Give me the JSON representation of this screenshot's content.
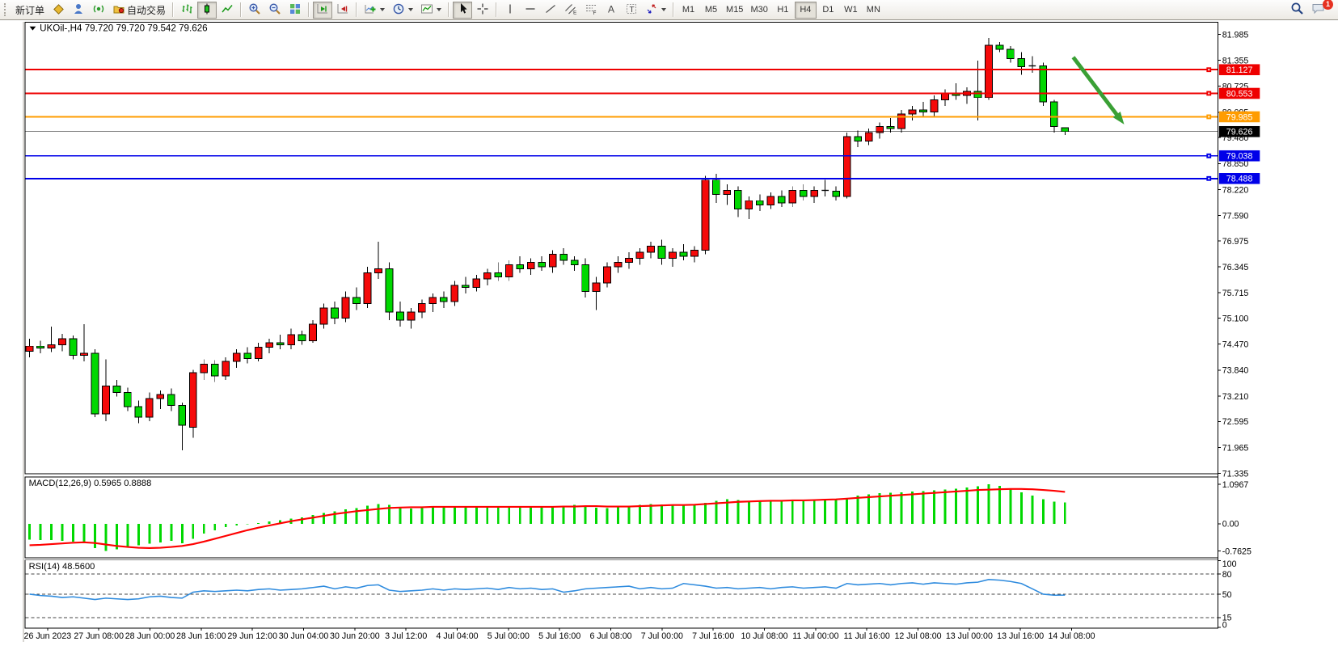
{
  "toolbar": {
    "new_order_label": "新订单",
    "auto_trading_label": "自动交易",
    "timeframes": [
      "M1",
      "M5",
      "M15",
      "M30",
      "H1",
      "H4",
      "D1",
      "W1",
      "MN"
    ],
    "active_timeframe": "H4",
    "notification_badge": "1"
  },
  "chart": {
    "symbol_title": "UKOil-,H4",
    "ohlc_text": "79.720 79.720 79.542 79.626",
    "macd_label": "MACD(12,26,9) 0.5965 0.8888",
    "rsi_label": "RSI(14) 48.5600"
  },
  "chart_data": [
    {
      "type": "candlestick",
      "symbol": "UKOil-",
      "timeframe": "H4",
      "open": 79.72,
      "high": 79.72,
      "low": 79.542,
      "close": 79.626,
      "bull_color": "#F50A0A",
      "bear_color": "#00D800",
      "wick_color": "#000000",
      "ylim": [
        71.335,
        81.985
      ],
      "price_ticks": [
        81.985,
        81.355,
        80.725,
        80.095,
        79.48,
        78.85,
        78.22,
        77.59,
        76.975,
        76.345,
        75.715,
        75.1,
        74.47,
        73.84,
        73.21,
        72.595,
        71.965,
        71.335
      ],
      "levels": [
        {
          "price": 81.127,
          "label": "81.127",
          "color": "#EE0000",
          "width": 2
        },
        {
          "price": 80.553,
          "label": "80.553",
          "color": "#EE0000",
          "width": 2
        },
        {
          "price": 79.985,
          "label": "79.985",
          "color": "#FF9C00",
          "width": 2
        },
        {
          "price": 79.626,
          "label": "79.626",
          "color": "#000000",
          "width": 1,
          "is_current_price": true
        },
        {
          "price": 79.038,
          "label": "79.038",
          "color": "#0000E8",
          "width": 2
        },
        {
          "price": 78.488,
          "label": "78.488",
          "color": "#0000E8",
          "width": 2
        }
      ],
      "arrow_annotation": {
        "color": "#3AA035",
        "from_price": 81.43,
        "to_price": 79.8
      },
      "time_labels": [
        "26 Jun 2023",
        "27 Jun 08:00",
        "28 Jun 00:00",
        "28 Jun 16:00",
        "29 Jun 12:00",
        "30 Jun 04:00",
        "30 Jun 20:00",
        "3 Jul 12:00",
        "4 Jul 04:00",
        "5 Jul 00:00",
        "5 Jul 16:00",
        "6 Jul 08:00",
        "7 Jul 00:00",
        "7 Jul 16:00",
        "10 Jul 08:00",
        "11 Jul 00:00",
        "11 Jul 16:00",
        "12 Jul 08:00",
        "13 Jul 00:00",
        "13 Jul 16:00",
        "14 Jul 08:00"
      ],
      "candles": [
        [
          74.3,
          74.6,
          74.15,
          74.42
        ],
        [
          74.42,
          74.55,
          74.25,
          74.38
        ],
        [
          74.38,
          74.9,
          74.28,
          74.45
        ],
        [
          74.45,
          74.72,
          74.3,
          74.6
        ],
        [
          74.6,
          74.68,
          74.1,
          74.2
        ],
        [
          74.2,
          74.95,
          74.05,
          74.25
        ],
        [
          74.25,
          74.35,
          72.7,
          72.78
        ],
        [
          72.78,
          74.1,
          72.6,
          73.45
        ],
        [
          73.45,
          73.6,
          73.2,
          73.3
        ],
        [
          73.3,
          73.42,
          72.85,
          72.95
        ],
        [
          72.95,
          73.1,
          72.55,
          72.7
        ],
        [
          72.7,
          73.3,
          72.6,
          73.15
        ],
        [
          73.15,
          73.35,
          72.9,
          73.25
        ],
        [
          73.25,
          73.4,
          72.85,
          72.98
        ],
        [
          72.98,
          73.05,
          71.9,
          72.5
        ],
        [
          72.45,
          73.85,
          72.2,
          73.78
        ],
        [
          73.78,
          74.1,
          73.6,
          73.98
        ],
        [
          73.98,
          74.08,
          73.55,
          73.7
        ],
        [
          73.7,
          74.15,
          73.6,
          74.05
        ],
        [
          74.05,
          74.35,
          73.9,
          74.25
        ],
        [
          74.25,
          74.4,
          74.0,
          74.12
        ],
        [
          74.12,
          74.5,
          74.05,
          74.4
        ],
        [
          74.4,
          74.6,
          74.25,
          74.5
        ],
        [
          74.5,
          74.7,
          74.35,
          74.45
        ],
        [
          74.45,
          74.85,
          74.35,
          74.7
        ],
        [
          74.7,
          74.8,
          74.45,
          74.55
        ],
        [
          74.55,
          75.05,
          74.5,
          74.95
        ],
        [
          74.95,
          75.45,
          74.85,
          75.35
        ],
        [
          75.35,
          75.5,
          74.95,
          75.1
        ],
        [
          75.1,
          75.75,
          75.0,
          75.6
        ],
        [
          75.6,
          75.85,
          75.3,
          75.45
        ],
        [
          75.45,
          76.35,
          75.35,
          76.2
        ],
        [
          76.2,
          76.95,
          76.05,
          76.3
        ],
        [
          76.3,
          76.45,
          75.05,
          75.25
        ],
        [
          75.25,
          75.5,
          74.9,
          75.05
        ],
        [
          75.05,
          75.35,
          74.85,
          75.25
        ],
        [
          75.25,
          75.55,
          75.1,
          75.45
        ],
        [
          75.45,
          75.7,
          75.25,
          75.6
        ],
        [
          75.6,
          75.75,
          75.35,
          75.5
        ],
        [
          75.5,
          76.0,
          75.4,
          75.9
        ],
        [
          75.9,
          76.1,
          75.7,
          75.85
        ],
        [
          75.85,
          76.15,
          75.75,
          76.05
        ],
        [
          76.05,
          76.3,
          75.9,
          76.2
        ],
        [
          76.2,
          76.45,
          76.0,
          76.1
        ],
        [
          76.1,
          76.5,
          76.0,
          76.4
        ],
        [
          76.4,
          76.6,
          76.2,
          76.3
        ],
        [
          76.3,
          76.55,
          76.15,
          76.45
        ],
        [
          76.45,
          76.6,
          76.25,
          76.35
        ],
        [
          76.35,
          76.75,
          76.2,
          76.65
        ],
        [
          76.65,
          76.8,
          76.4,
          76.5
        ],
        [
          76.5,
          76.6,
          76.25,
          76.4
        ],
        [
          76.4,
          76.55,
          75.6,
          75.75
        ],
        [
          75.75,
          76.1,
          75.3,
          75.95
        ],
        [
          75.95,
          76.45,
          75.85,
          76.35
        ],
        [
          76.35,
          76.6,
          76.2,
          76.45
        ],
        [
          76.45,
          76.7,
          76.3,
          76.55
        ],
        [
          76.55,
          76.8,
          76.4,
          76.7
        ],
        [
          76.7,
          76.95,
          76.55,
          76.85
        ],
        [
          76.85,
          77.0,
          76.4,
          76.55
        ],
        [
          76.55,
          76.8,
          76.35,
          76.7
        ],
        [
          76.7,
          76.9,
          76.5,
          76.6
        ],
        [
          76.6,
          76.85,
          76.45,
          76.75
        ],
        [
          76.75,
          78.55,
          76.65,
          78.45
        ],
        [
          78.45,
          78.6,
          77.9,
          78.1
        ],
        [
          78.1,
          78.35,
          77.85,
          78.2
        ],
        [
          78.2,
          78.3,
          77.55,
          77.75
        ],
        [
          77.75,
          78.05,
          77.5,
          77.95
        ],
        [
          77.95,
          78.1,
          77.7,
          77.85
        ],
        [
          77.85,
          78.15,
          77.75,
          78.05
        ],
        [
          78.05,
          78.2,
          77.8,
          77.9
        ],
        [
          77.9,
          78.3,
          77.8,
          78.2
        ],
        [
          78.2,
          78.35,
          77.95,
          78.05
        ],
        [
          78.05,
          78.3,
          77.9,
          78.2
        ],
        [
          78.2,
          78.45,
          78.05,
          78.18
        ],
        [
          78.18,
          78.3,
          77.95,
          78.05
        ],
        [
          78.05,
          79.6,
          78.0,
          79.5
        ],
        [
          79.5,
          79.65,
          79.25,
          79.4
        ],
        [
          79.4,
          79.7,
          79.3,
          79.6
        ],
        [
          79.6,
          79.85,
          79.45,
          79.75
        ],
        [
          79.75,
          79.95,
          79.6,
          79.7
        ],
        [
          79.7,
          80.15,
          79.6,
          80.05
        ],
        [
          80.05,
          80.25,
          79.9,
          80.15
        ],
        [
          80.15,
          80.35,
          80.0,
          80.1
        ],
        [
          80.1,
          80.5,
          80.0,
          80.4
        ],
        [
          80.4,
          80.65,
          80.25,
          80.55
        ],
        [
          80.55,
          80.8,
          80.4,
          80.5
        ],
        [
          80.5,
          80.7,
          80.3,
          80.6
        ],
        [
          80.6,
          81.35,
          79.9,
          80.45
        ],
        [
          80.45,
          81.9,
          80.4,
          81.72
        ],
        [
          81.72,
          81.8,
          81.55,
          81.62
        ],
        [
          81.62,
          81.7,
          81.3,
          81.4
        ],
        [
          81.4,
          81.55,
          81.0,
          81.2
        ],
        [
          81.2,
          81.45,
          81.05,
          81.22
        ],
        [
          81.22,
          81.3,
          80.25,
          80.35
        ],
        [
          80.35,
          80.4,
          79.6,
          79.75
        ],
        [
          79.72,
          79.72,
          79.542,
          79.626
        ]
      ]
    },
    {
      "type": "bar",
      "name": "MACD",
      "params": "12,26,9",
      "value": "0.5965",
      "signal_value": "0.8888",
      "histogram_color": "#00D800",
      "signal_color": "#FF0000",
      "ticks": [
        1.0967,
        0.0,
        -0.7625
      ],
      "tick_labels": [
        "1.0967",
        "0.00",
        "-0.7625"
      ],
      "ylim": [
        -0.7625,
        1.0967
      ],
      "values": [
        -0.44,
        -0.46,
        -0.45,
        -0.48,
        -0.5,
        -0.55,
        -0.68,
        -0.7625,
        -0.72,
        -0.66,
        -0.6,
        -0.56,
        -0.52,
        -0.48,
        -0.55,
        -0.42,
        -0.28,
        -0.18,
        -0.1,
        -0.05,
        -0.02,
        0.02,
        0.06,
        0.1,
        0.14,
        0.18,
        0.24,
        0.3,
        0.34,
        0.4,
        0.44,
        0.5,
        0.55,
        0.52,
        0.46,
        0.42,
        0.44,
        0.47,
        0.46,
        0.48,
        0.46,
        0.45,
        0.46,
        0.47,
        0.48,
        0.47,
        0.46,
        0.47,
        0.48,
        0.5,
        0.52,
        0.48,
        0.45,
        0.44,
        0.46,
        0.5,
        0.53,
        0.55,
        0.54,
        0.53,
        0.52,
        0.52,
        0.58,
        0.64,
        0.68,
        0.66,
        0.64,
        0.63,
        0.64,
        0.65,
        0.64,
        0.65,
        0.64,
        0.65,
        0.66,
        0.72,
        0.78,
        0.82,
        0.85,
        0.86,
        0.88,
        0.9,
        0.91,
        0.93,
        0.95,
        0.98,
        1.01,
        1.04,
        1.0967,
        1.06,
        0.98,
        0.88,
        0.78,
        0.68,
        0.62,
        0.5965
      ],
      "signal": [
        -0.6,
        -0.59,
        -0.57,
        -0.55,
        -0.53,
        -0.52,
        -0.54,
        -0.58,
        -0.62,
        -0.65,
        -0.67,
        -0.68,
        -0.67,
        -0.65,
        -0.62,
        -0.57,
        -0.5,
        -0.42,
        -0.34,
        -0.26,
        -0.18,
        -0.11,
        -0.05,
        0.01,
        0.07,
        0.12,
        0.17,
        0.22,
        0.27,
        0.31,
        0.35,
        0.38,
        0.41,
        0.44,
        0.45,
        0.46,
        0.46,
        0.47,
        0.47,
        0.47,
        0.47,
        0.47,
        0.47,
        0.47,
        0.47,
        0.47,
        0.47,
        0.47,
        0.47,
        0.48,
        0.48,
        0.49,
        0.49,
        0.48,
        0.48,
        0.48,
        0.49,
        0.5,
        0.51,
        0.52,
        0.52,
        0.53,
        0.55,
        0.57,
        0.59,
        0.61,
        0.62,
        0.63,
        0.64,
        0.64,
        0.65,
        0.65,
        0.66,
        0.67,
        0.68,
        0.7,
        0.72,
        0.74,
        0.76,
        0.78,
        0.8,
        0.82,
        0.84,
        0.86,
        0.88,
        0.9,
        0.92,
        0.94,
        0.95,
        0.96,
        0.97,
        0.97,
        0.96,
        0.94,
        0.92,
        0.8888
      ]
    },
    {
      "type": "line",
      "name": "RSI",
      "params": "14",
      "value": "48.5600",
      "line_color": "#2E8BDE",
      "ticks": [
        100,
        80,
        50,
        15,
        0
      ],
      "dashed_levels": [
        80,
        50,
        15
      ],
      "ylim": [
        0,
        100
      ],
      "values": [
        50,
        48,
        47,
        45,
        46,
        44,
        42,
        44,
        43,
        42,
        43,
        46,
        47,
        45,
        44,
        53,
        55,
        54,
        55,
        56,
        55,
        57,
        58,
        56,
        57,
        58,
        60,
        62,
        58,
        61,
        59,
        63,
        64,
        56,
        54,
        55,
        56,
        58,
        56,
        58,
        57,
        58,
        59,
        57,
        60,
        58,
        59,
        57,
        58,
        53,
        55,
        58,
        59,
        60,
        61,
        62,
        58,
        60,
        58,
        59,
        66,
        64,
        62,
        59,
        60,
        58,
        59,
        60,
        58,
        60,
        61,
        59,
        60,
        61,
        59,
        66,
        64,
        65,
        66,
        64,
        66,
        67,
        65,
        67,
        66,
        65,
        67,
        68,
        72,
        71,
        69,
        66,
        58,
        50,
        48.4,
        48.56
      ]
    }
  ]
}
